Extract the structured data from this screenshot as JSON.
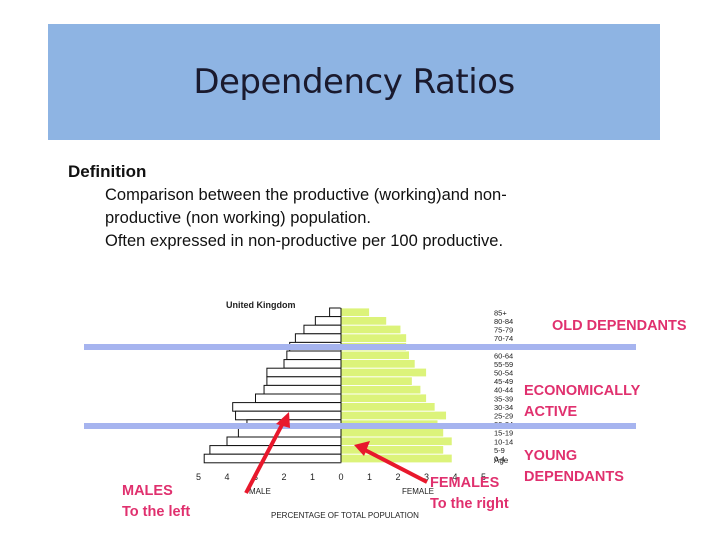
{
  "slide": {
    "title": "Dependency Ratios",
    "definition": {
      "heading": "Definition",
      "line1": "Comparison between the productive (working)and non-",
      "line2": "productive (non working) population.",
      "line3": "Often expressed in non-productive per 100 productive."
    }
  },
  "pyramid": {
    "country": "United Kingdom",
    "age_groups": [
      "85+",
      "80-84",
      "75-79",
      "70-74",
      "65-69",
      "60-64",
      "55-59",
      "50-54",
      "45-49",
      "40-44",
      "35-39",
      "30-34",
      "25-29",
      "20-24",
      "15-19",
      "10-14",
      "5-9",
      "0-4"
    ],
    "males": [
      0.4,
      0.9,
      1.3,
      1.6,
      1.8,
      1.9,
      2.0,
      2.6,
      2.6,
      2.7,
      3.0,
      3.8,
      3.7,
      3.3,
      3.6,
      4.0,
      4.6,
      4.8
    ],
    "females": [
      1.0,
      1.6,
      2.1,
      2.3,
      2.3,
      2.4,
      2.6,
      3.0,
      2.5,
      2.8,
      3.0,
      3.3,
      3.7,
      3.4,
      3.6,
      3.9,
      3.6,
      3.9
    ],
    "age_axis_label": "Age",
    "x_ticks": [
      "5",
      "4",
      "3",
      "2",
      "1",
      "0",
      "1",
      "2",
      "3",
      "4",
      "5"
    ],
    "male_label": "MALE",
    "female_label": "FEMALE",
    "x_axis_title": "PERCENTAGE OF TOTAL POPULATION",
    "female_fill": "#dcf37a",
    "divider_color": "#a6b4ef"
  },
  "annotations": {
    "old_dependants": "OLD DEPENDANTS",
    "economically_active_1": "ECONOMICALLY",
    "economically_active_2": "ACTIVE",
    "young_dependants_1": "YOUNG",
    "young_dependants_2": "DEPENDANTS",
    "males_1": "MALES",
    "males_2": "To the left",
    "females_1": "FEMALES",
    "females_2": "To the right",
    "accent_color": "#e0306e",
    "arrow_color": "#e8182c"
  }
}
